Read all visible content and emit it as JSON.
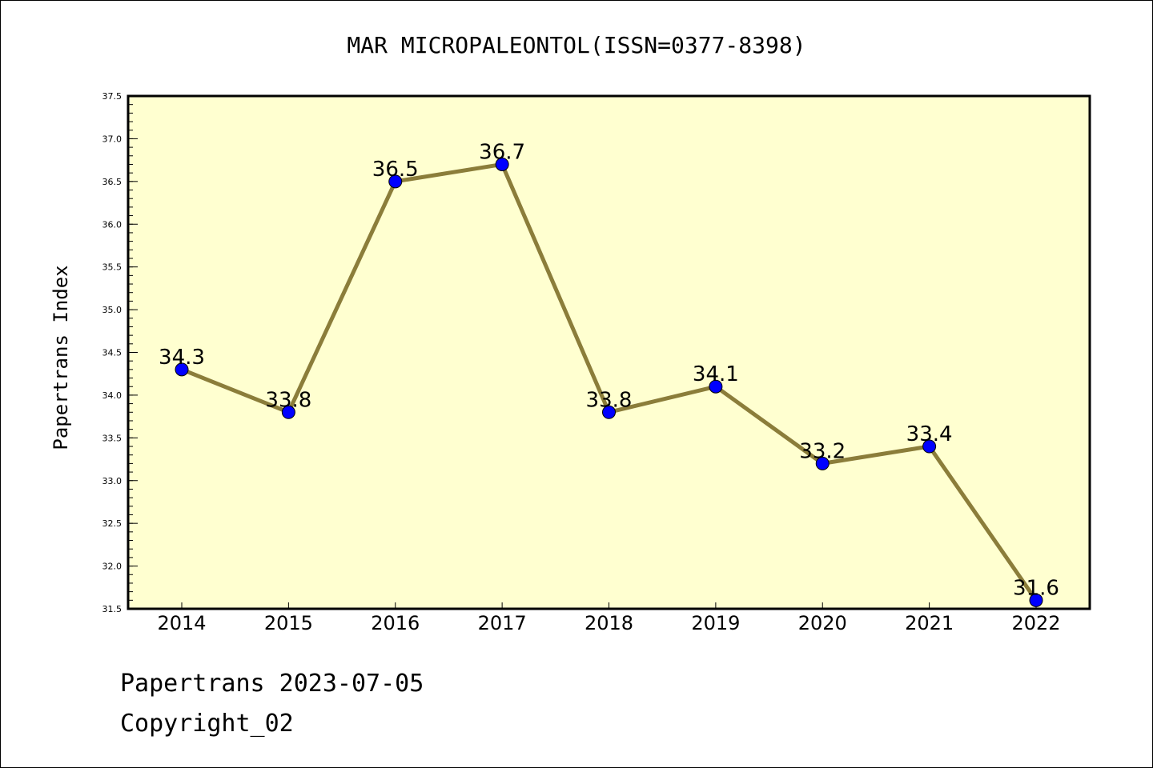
{
  "chart_data": {
    "type": "line",
    "title": "MAR MICROPALEONTOL(ISSN=0377-8398)",
    "xlabel": "",
    "ylabel": "Papertrans Index",
    "categories": [
      "2014",
      "2015",
      "2016",
      "2017",
      "2018",
      "2019",
      "2020",
      "2021",
      "2022"
    ],
    "series": [
      {
        "values": [
          34.3,
          33.8,
          36.5,
          36.7,
          33.8,
          34.1,
          33.2,
          33.4,
          31.6
        ],
        "labels": [
          "34.3",
          "33.8",
          "36.5",
          "36.7",
          "33.8",
          "34.1",
          "33.2",
          "33.4",
          "31.6"
        ]
      }
    ],
    "ylim": [
      31.5,
      37.5
    ],
    "yticks": [
      "31.5",
      "32.0",
      "32.5",
      "33.0",
      "33.5",
      "34.0",
      "34.5",
      "35.0",
      "35.5",
      "36.0",
      "36.5",
      "37.0",
      "37.5"
    ],
    "grid": false,
    "colors": {
      "plot_background": "#ffffd0",
      "line": "#8b7d3a",
      "marker": "#0000ff"
    }
  },
  "footer": {
    "line1": "Papertrans 2023-07-05",
    "line2": "Copyright_02"
  }
}
